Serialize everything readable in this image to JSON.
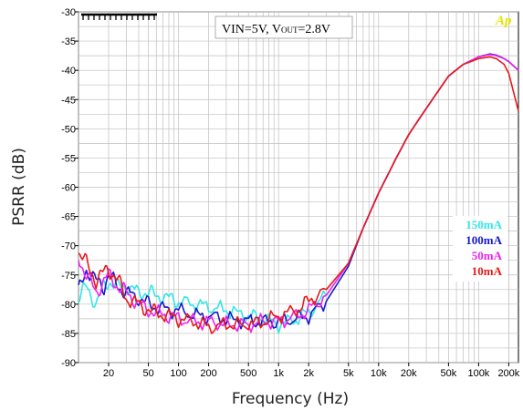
{
  "chart_data": {
    "type": "line",
    "xlabel": "Frequency (Hz)",
    "ylabel": "PSRR (dB)",
    "x_scale": "log",
    "xlim": [
      10,
      250000
    ],
    "ylim": [
      -90,
      -30
    ],
    "grid": true,
    "legend_position": "right",
    "x_ticks": [
      {
        "value": 20,
        "label": "20"
      },
      {
        "value": 50,
        "label": "50"
      },
      {
        "value": 100,
        "label": "100"
      },
      {
        "value": 200,
        "label": "200"
      },
      {
        "value": 500,
        "label": "500"
      },
      {
        "value": 1000,
        "label": "1k"
      },
      {
        "value": 2000,
        "label": "2k"
      },
      {
        "value": 5000,
        "label": "5k"
      },
      {
        "value": 10000,
        "label": "10k"
      },
      {
        "value": 20000,
        "label": "20k"
      },
      {
        "value": 50000,
        "label": "50k"
      },
      {
        "value": 100000,
        "label": "100k"
      },
      {
        "value": 200000,
        "label": "200k"
      }
    ],
    "y_ticks": [
      {
        "value": -30,
        "label": "-30"
      },
      {
        "value": -35,
        "label": "-35"
      },
      {
        "value": -40,
        "label": "-40"
      },
      {
        "value": -45,
        "label": "-45"
      },
      {
        "value": -50,
        "label": "-50"
      },
      {
        "value": -55,
        "label": "-55"
      },
      {
        "value": -60,
        "label": "-60"
      },
      {
        "value": -65,
        "label": "-65"
      },
      {
        "value": -70,
        "label": "-70"
      },
      {
        "value": -75,
        "label": "-75"
      },
      {
        "value": -80,
        "label": "-80"
      },
      {
        "value": -85,
        "label": "-85"
      },
      {
        "value": -90,
        "label": "-90"
      }
    ],
    "annotation": {
      "prefix": "VIN=5V, V",
      "sub": "OUT",
      "suffix": "=2.8V"
    },
    "logo": "Ap",
    "series": [
      {
        "name": "150mA",
        "color": "#33e6e6",
        "x": [
          10,
          12,
          15,
          18,
          20,
          25,
          30,
          40,
          50,
          60,
          80,
          100,
          150,
          200,
          300,
          500,
          700,
          1000,
          1500,
          2000,
          3000,
          5000,
          7000,
          10000,
          15000,
          20000,
          30000,
          50000,
          70000,
          100000,
          130000,
          150000,
          180000,
          200000,
          250000
        ],
        "y": [
          -79,
          -77,
          -80,
          -77,
          -76,
          -77,
          -77,
          -78,
          -78,
          -78.5,
          -79,
          -79.5,
          -80,
          -80.5,
          -81,
          -82,
          -82.5,
          -83.5,
          -82.5,
          -81.5,
          -78.5,
          -73,
          -67,
          -61,
          -55,
          -51,
          -46.5,
          -41,
          -39,
          -37.7,
          -37.3,
          -37.5,
          -38,
          -38.5,
          -40
        ]
      },
      {
        "name": "100mA",
        "color": "#1a1acc",
        "x": [
          10,
          12,
          15,
          18,
          20,
          25,
          30,
          40,
          50,
          60,
          80,
          100,
          150,
          200,
          300,
          500,
          700,
          1000,
          1500,
          2000,
          3000,
          5000,
          7000,
          10000,
          15000,
          20000,
          30000,
          50000,
          70000,
          100000,
          130000,
          150000,
          180000,
          200000,
          250000
        ],
        "y": [
          -78,
          -74,
          -76,
          -77,
          -75,
          -77,
          -78,
          -79,
          -80,
          -80.5,
          -81,
          -81,
          -82,
          -82,
          -82.5,
          -83,
          -83,
          -83,
          -82.5,
          -82,
          -79.5,
          -73.5,
          -67,
          -61,
          -55,
          -51,
          -46.5,
          -41,
          -39,
          -37.7,
          -37.2,
          -37.4,
          -38,
          -38.5,
          -40
        ]
      },
      {
        "name": "50mA",
        "color": "#ee22ee",
        "x": [
          10,
          12,
          15,
          18,
          20,
          25,
          30,
          40,
          50,
          60,
          80,
          100,
          150,
          200,
          300,
          500,
          700,
          1000,
          1500,
          2000,
          3000,
          5000,
          7000,
          10000,
          15000,
          20000,
          30000,
          50000,
          70000,
          100000,
          130000,
          150000,
          180000,
          200000,
          250000
        ],
        "y": [
          -72,
          -75,
          -78,
          -76,
          -75,
          -77,
          -78,
          -80,
          -81,
          -81.5,
          -82,
          -82.5,
          -83,
          -83,
          -83.5,
          -83.5,
          -83,
          -83,
          -82,
          -81,
          -78.5,
          -73,
          -67,
          -61,
          -55,
          -51,
          -46.5,
          -41,
          -39,
          -37.7,
          -37.3,
          -37.5,
          -38,
          -38.5,
          -40
        ]
      },
      {
        "name": "10mA",
        "color": "#e61a1a",
        "x": [
          10,
          12,
          15,
          18,
          20,
          25,
          30,
          40,
          50,
          60,
          80,
          100,
          150,
          200,
          300,
          500,
          700,
          1000,
          1500,
          2000,
          3000,
          5000,
          7000,
          10000,
          15000,
          20000,
          30000,
          50000,
          70000,
          100000,
          130000,
          150000,
          180000,
          200000,
          250000
        ],
        "y": [
          -71,
          -73,
          -76,
          -74.5,
          -74,
          -76,
          -79,
          -80,
          -81,
          -81.5,
          -82,
          -82.5,
          -83,
          -84,
          -83.5,
          -83.5,
          -83,
          -82,
          -81,
          -79.5,
          -77.5,
          -73,
          -67,
          -61,
          -55,
          -51,
          -46.5,
          -41,
          -39,
          -38,
          -37.7,
          -38,
          -39,
          -40.5,
          -47
        ]
      }
    ]
  }
}
